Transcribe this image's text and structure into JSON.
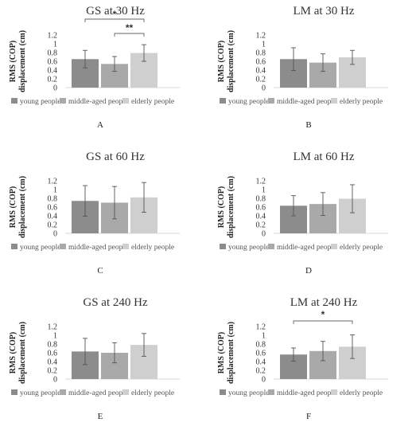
{
  "legend_labels": [
    "young people",
    "middle-aged people",
    "elderly people"
  ],
  "colors": [
    "#8c8c8c",
    "#a9a9a9",
    "#cfcfcf"
  ],
  "ylabel_line1": "RMS (COP)",
  "ylabel_line2": "displacement (cm)",
  "chart_data": [
    {
      "type": "bar",
      "panel_label": "A",
      "title": "GS at 30 Hz",
      "categories": [
        "young people",
        "middle-aged people",
        "elderly people"
      ],
      "values": [
        0.65,
        0.54,
        0.79
      ],
      "errors": [
        0.2,
        0.17,
        0.19
      ],
      "ylim": [
        0,
        1.2
      ],
      "yticks": [
        "0",
        "0.2",
        "0.4",
        "0.6",
        "0.8",
        "1",
        "1.2"
      ],
      "significance": [
        {
          "from": 0,
          "to": 2,
          "label": "*"
        },
        {
          "from": 1,
          "to": 2,
          "label": "**"
        }
      ]
    },
    {
      "type": "bar",
      "panel_label": "B",
      "title": "LM at 30 Hz",
      "categories": [
        "young people",
        "middle-aged people",
        "elderly people"
      ],
      "values": [
        0.65,
        0.57,
        0.69
      ],
      "errors": [
        0.26,
        0.2,
        0.16
      ],
      "ylim": [
        0,
        1.2
      ],
      "yticks": [
        "0",
        "0.2",
        "0.4",
        "0.6",
        "0.8",
        "1",
        "1.2"
      ],
      "significance": []
    },
    {
      "type": "bar",
      "panel_label": "C",
      "title": "GS at 60 Hz",
      "categories": [
        "young people",
        "middle-aged people",
        "elderly people"
      ],
      "values": [
        0.74,
        0.7,
        0.82
      ],
      "errors": [
        0.35,
        0.37,
        0.34
      ],
      "ylim": [
        0,
        1.2
      ],
      "yticks": [
        "0",
        "0.2",
        "0.4",
        "0.6",
        "0.8",
        "1",
        "1.2"
      ],
      "significance": []
    },
    {
      "type": "bar",
      "panel_label": "D",
      "title": "LM at 60 Hz",
      "categories": [
        "young people",
        "middle-aged people",
        "elderly people"
      ],
      "values": [
        0.63,
        0.67,
        0.79
      ],
      "errors": [
        0.23,
        0.26,
        0.32
      ],
      "ylim": [
        0,
        1.2
      ],
      "yticks": [
        "0",
        "0.2",
        "0.4",
        "0.6",
        "0.8",
        "1",
        "1.2"
      ],
      "significance": []
    },
    {
      "type": "bar",
      "panel_label": "E",
      "title": "GS at 240 Hz",
      "categories": [
        "young people",
        "middle-aged people",
        "elderly people"
      ],
      "values": [
        0.63,
        0.6,
        0.78
      ],
      "errors": [
        0.3,
        0.23,
        0.26
      ],
      "ylim": [
        0,
        1.2
      ],
      "yticks": [
        "0",
        "0.2",
        "0.4",
        "0.6",
        "0.8",
        "1",
        "1.2"
      ],
      "significance": []
    },
    {
      "type": "bar",
      "panel_label": "F",
      "title": "LM at 240 Hz",
      "categories": [
        "young people",
        "middle-aged people",
        "elderly people"
      ],
      "values": [
        0.56,
        0.64,
        0.74
      ],
      "errors": [
        0.15,
        0.22,
        0.27
      ],
      "ylim": [
        0,
        1.2
      ],
      "yticks": [
        "0",
        "0.2",
        "0.4",
        "0.6",
        "0.8",
        "1",
        "1.2"
      ],
      "significance": [
        {
          "from": 0,
          "to": 2,
          "label": "*"
        }
      ]
    }
  ]
}
